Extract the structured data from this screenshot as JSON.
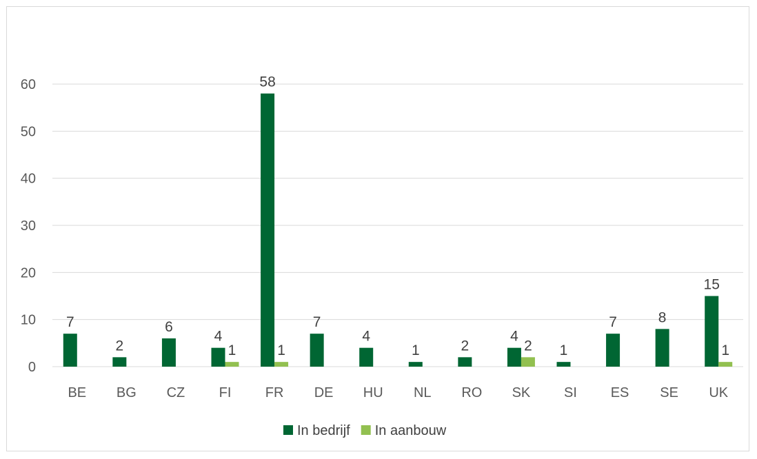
{
  "chart_data": {
    "type": "bar",
    "title": "",
    "xlabel": "",
    "ylabel": "",
    "categories": [
      "BE",
      "BG",
      "CZ",
      "FI",
      "FR",
      "DE",
      "HU",
      "NL",
      "RO",
      "SK",
      "SI",
      "ES",
      "SE",
      "UK"
    ],
    "series": [
      {
        "name": "In bedrijf",
        "color": "#006633",
        "values": [
          7,
          2,
          6,
          4,
          58,
          7,
          4,
          1,
          2,
          4,
          1,
          7,
          8,
          15
        ]
      },
      {
        "name": "In aanbouw",
        "color": "#92c050",
        "values": [
          null,
          null,
          null,
          1,
          1,
          null,
          null,
          null,
          null,
          2,
          null,
          null,
          null,
          1
        ]
      }
    ],
    "ylim": [
      0,
      60
    ],
    "yticks": [
      0,
      10,
      20,
      30,
      40,
      50,
      60
    ],
    "grid": true,
    "legend_position": "bottom",
    "data_labels": true
  }
}
